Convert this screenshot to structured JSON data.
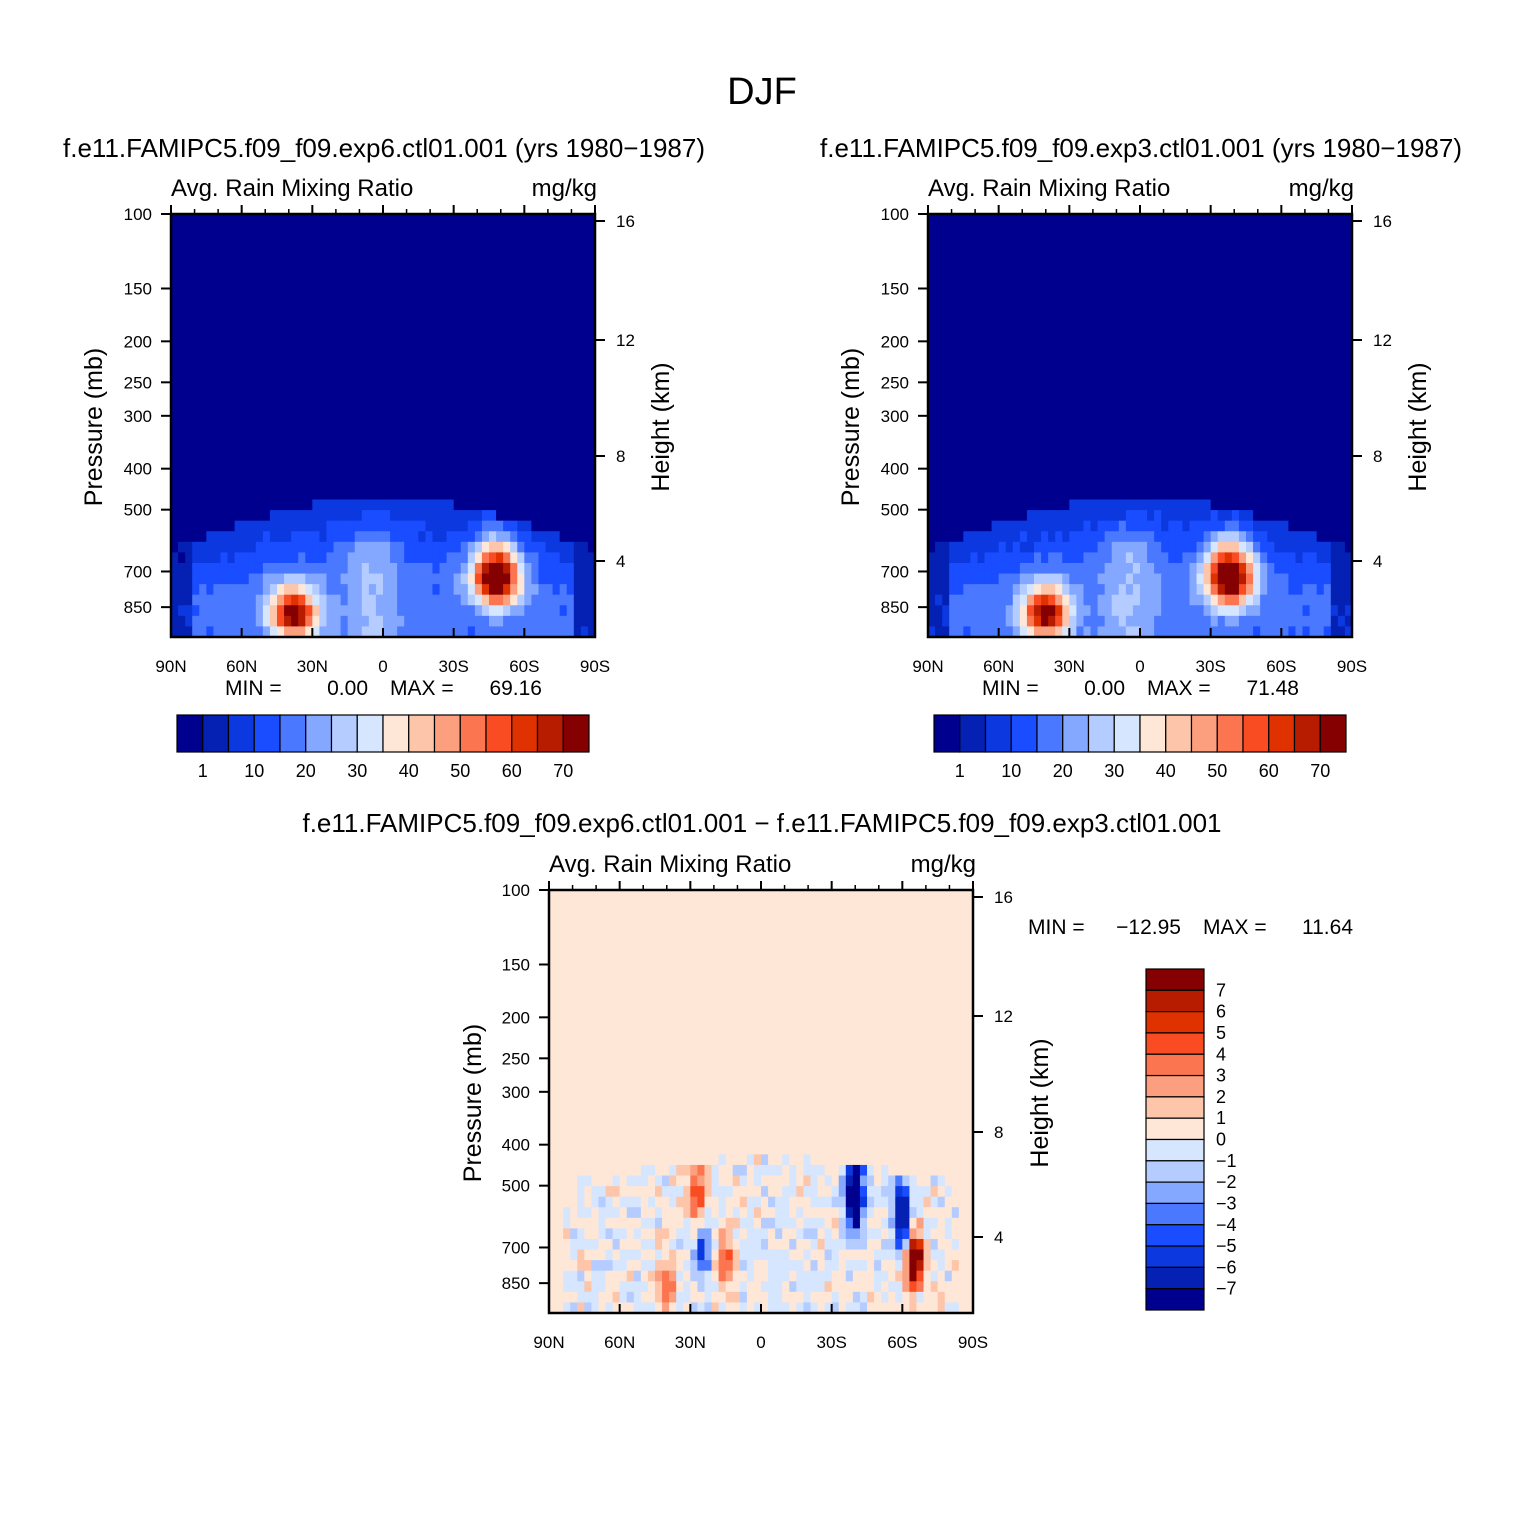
{
  "figure": {
    "title": "DJF"
  },
  "chart_data": [
    {
      "type": "heatmap",
      "title": "f.e11.FAMIPC5.f09_f09.exp6.ctl01.001 (yrs 1980−1987)",
      "left_label": "Avg. Rain Mixing Ratio",
      "right_label": "mg/kg",
      "ylabel": "Pressure (mb)",
      "ylabel_right": "Height (km)",
      "x_ticks": [
        "90N",
        "60N",
        "30N",
        "0",
        "30S",
        "60S",
        "90S"
      ],
      "y_ticks": [
        "100",
        "150",
        "200",
        "250",
        "300",
        "400",
        "500",
        "700",
        "850"
      ],
      "y_ticks_right": [
        "16",
        "12",
        "8",
        "4"
      ],
      "min_label": "MIN =",
      "min_value": "0.00",
      "max_label": "MAX =",
      "max_value": "69.16",
      "colorbar_labels": [
        "1",
        "10",
        "20",
        "30",
        "40",
        "50",
        "60",
        "70"
      ],
      "blobs": [
        {
          "lat": -48,
          "p": 720,
          "peak": 69.16
        },
        {
          "lat": 38,
          "p": 880,
          "peak": 60
        }
      ]
    },
    {
      "type": "heatmap",
      "title": "f.e11.FAMIPC5.f09_f09.exp3.ctl01.001 (yrs 1980−1987)",
      "left_label": "Avg. Rain Mixing Ratio",
      "right_label": "mg/kg",
      "ylabel": "Pressure (mb)",
      "ylabel_right": "Height (km)",
      "x_ticks": [
        "90N",
        "60N",
        "30N",
        "0",
        "30S",
        "60S",
        "90S"
      ],
      "y_ticks": [
        "100",
        "150",
        "200",
        "250",
        "300",
        "400",
        "500",
        "700",
        "850"
      ],
      "y_ticks_right": [
        "16",
        "12",
        "8",
        "4"
      ],
      "min_label": "MIN =",
      "min_value": "0.00",
      "max_label": "MAX =",
      "max_value": "71.48",
      "colorbar_labels": [
        "1",
        "10",
        "20",
        "30",
        "40",
        "50",
        "60",
        "70"
      ],
      "blobs": [
        {
          "lat": -38,
          "p": 720,
          "peak": 71.48
        },
        {
          "lat": 40,
          "p": 880,
          "peak": 60
        }
      ]
    },
    {
      "type": "heatmap",
      "title": "f.e11.FAMIPC5.f09_f09.exp6.ctl01.001 − f.e11.FAMIPC5.f09_f09.exp3.ctl01.001",
      "left_label": "Avg. Rain Mixing Ratio",
      "right_label": "mg/kg",
      "ylabel": "Pressure (mb)",
      "ylabel_right": "Height (km)",
      "x_ticks": [
        "90N",
        "60N",
        "30N",
        "0",
        "30S",
        "60S",
        "90S"
      ],
      "y_ticks": [
        "100",
        "150",
        "200",
        "250",
        "300",
        "400",
        "500",
        "700",
        "850"
      ],
      "y_ticks_right": [
        "16",
        "12",
        "8",
        "4"
      ],
      "min_label": "MIN =",
      "min_value": "−12.95",
      "max_label": "MAX =",
      "max_value": "11.64",
      "colorbar_labels": [
        "7",
        "6",
        "5",
        "4",
        "3",
        "2",
        "1",
        "0",
        "−1",
        "−2",
        "−3",
        "−4",
        "−5",
        "−6",
        "−7"
      ],
      "blobs": [
        {
          "lat": -40,
          "p": 530,
          "peak": -12.95
        },
        {
          "lat": -60,
          "p": 600,
          "peak": -9
        },
        {
          "lat": -65,
          "p": 750,
          "peak": 11.64
        },
        {
          "lat": 25,
          "p": 700,
          "peak": -6
        },
        {
          "lat": 27,
          "p": 540,
          "peak": 5
        },
        {
          "lat": 15,
          "p": 760,
          "peak": 5
        },
        {
          "lat": 40,
          "p": 880,
          "peak": 4
        }
      ]
    }
  ],
  "colors": {
    "seq": [
      "#00008e",
      "#0421b4",
      "#0c38e0",
      "#1a4dff",
      "#4a78ff",
      "#84a8ff",
      "#b4ccff",
      "#d6e6ff",
      "#fee7d6",
      "#fdc6aa",
      "#fc9f7f",
      "#fb7550",
      "#f94c22",
      "#e03200",
      "#b81c00",
      "#850000"
    ],
    "diff_top_to_bottom": [
      "#850000",
      "#b81c00",
      "#e03200",
      "#f94c22",
      "#fb7550",
      "#fc9f7f",
      "#fdc6aa",
      "#fee7d6",
      "#d6e6ff",
      "#b4ccff",
      "#84a8ff",
      "#4a78ff",
      "#1a4dff",
      "#0c38e0",
      "#0421b4",
      "#00008e"
    ]
  }
}
